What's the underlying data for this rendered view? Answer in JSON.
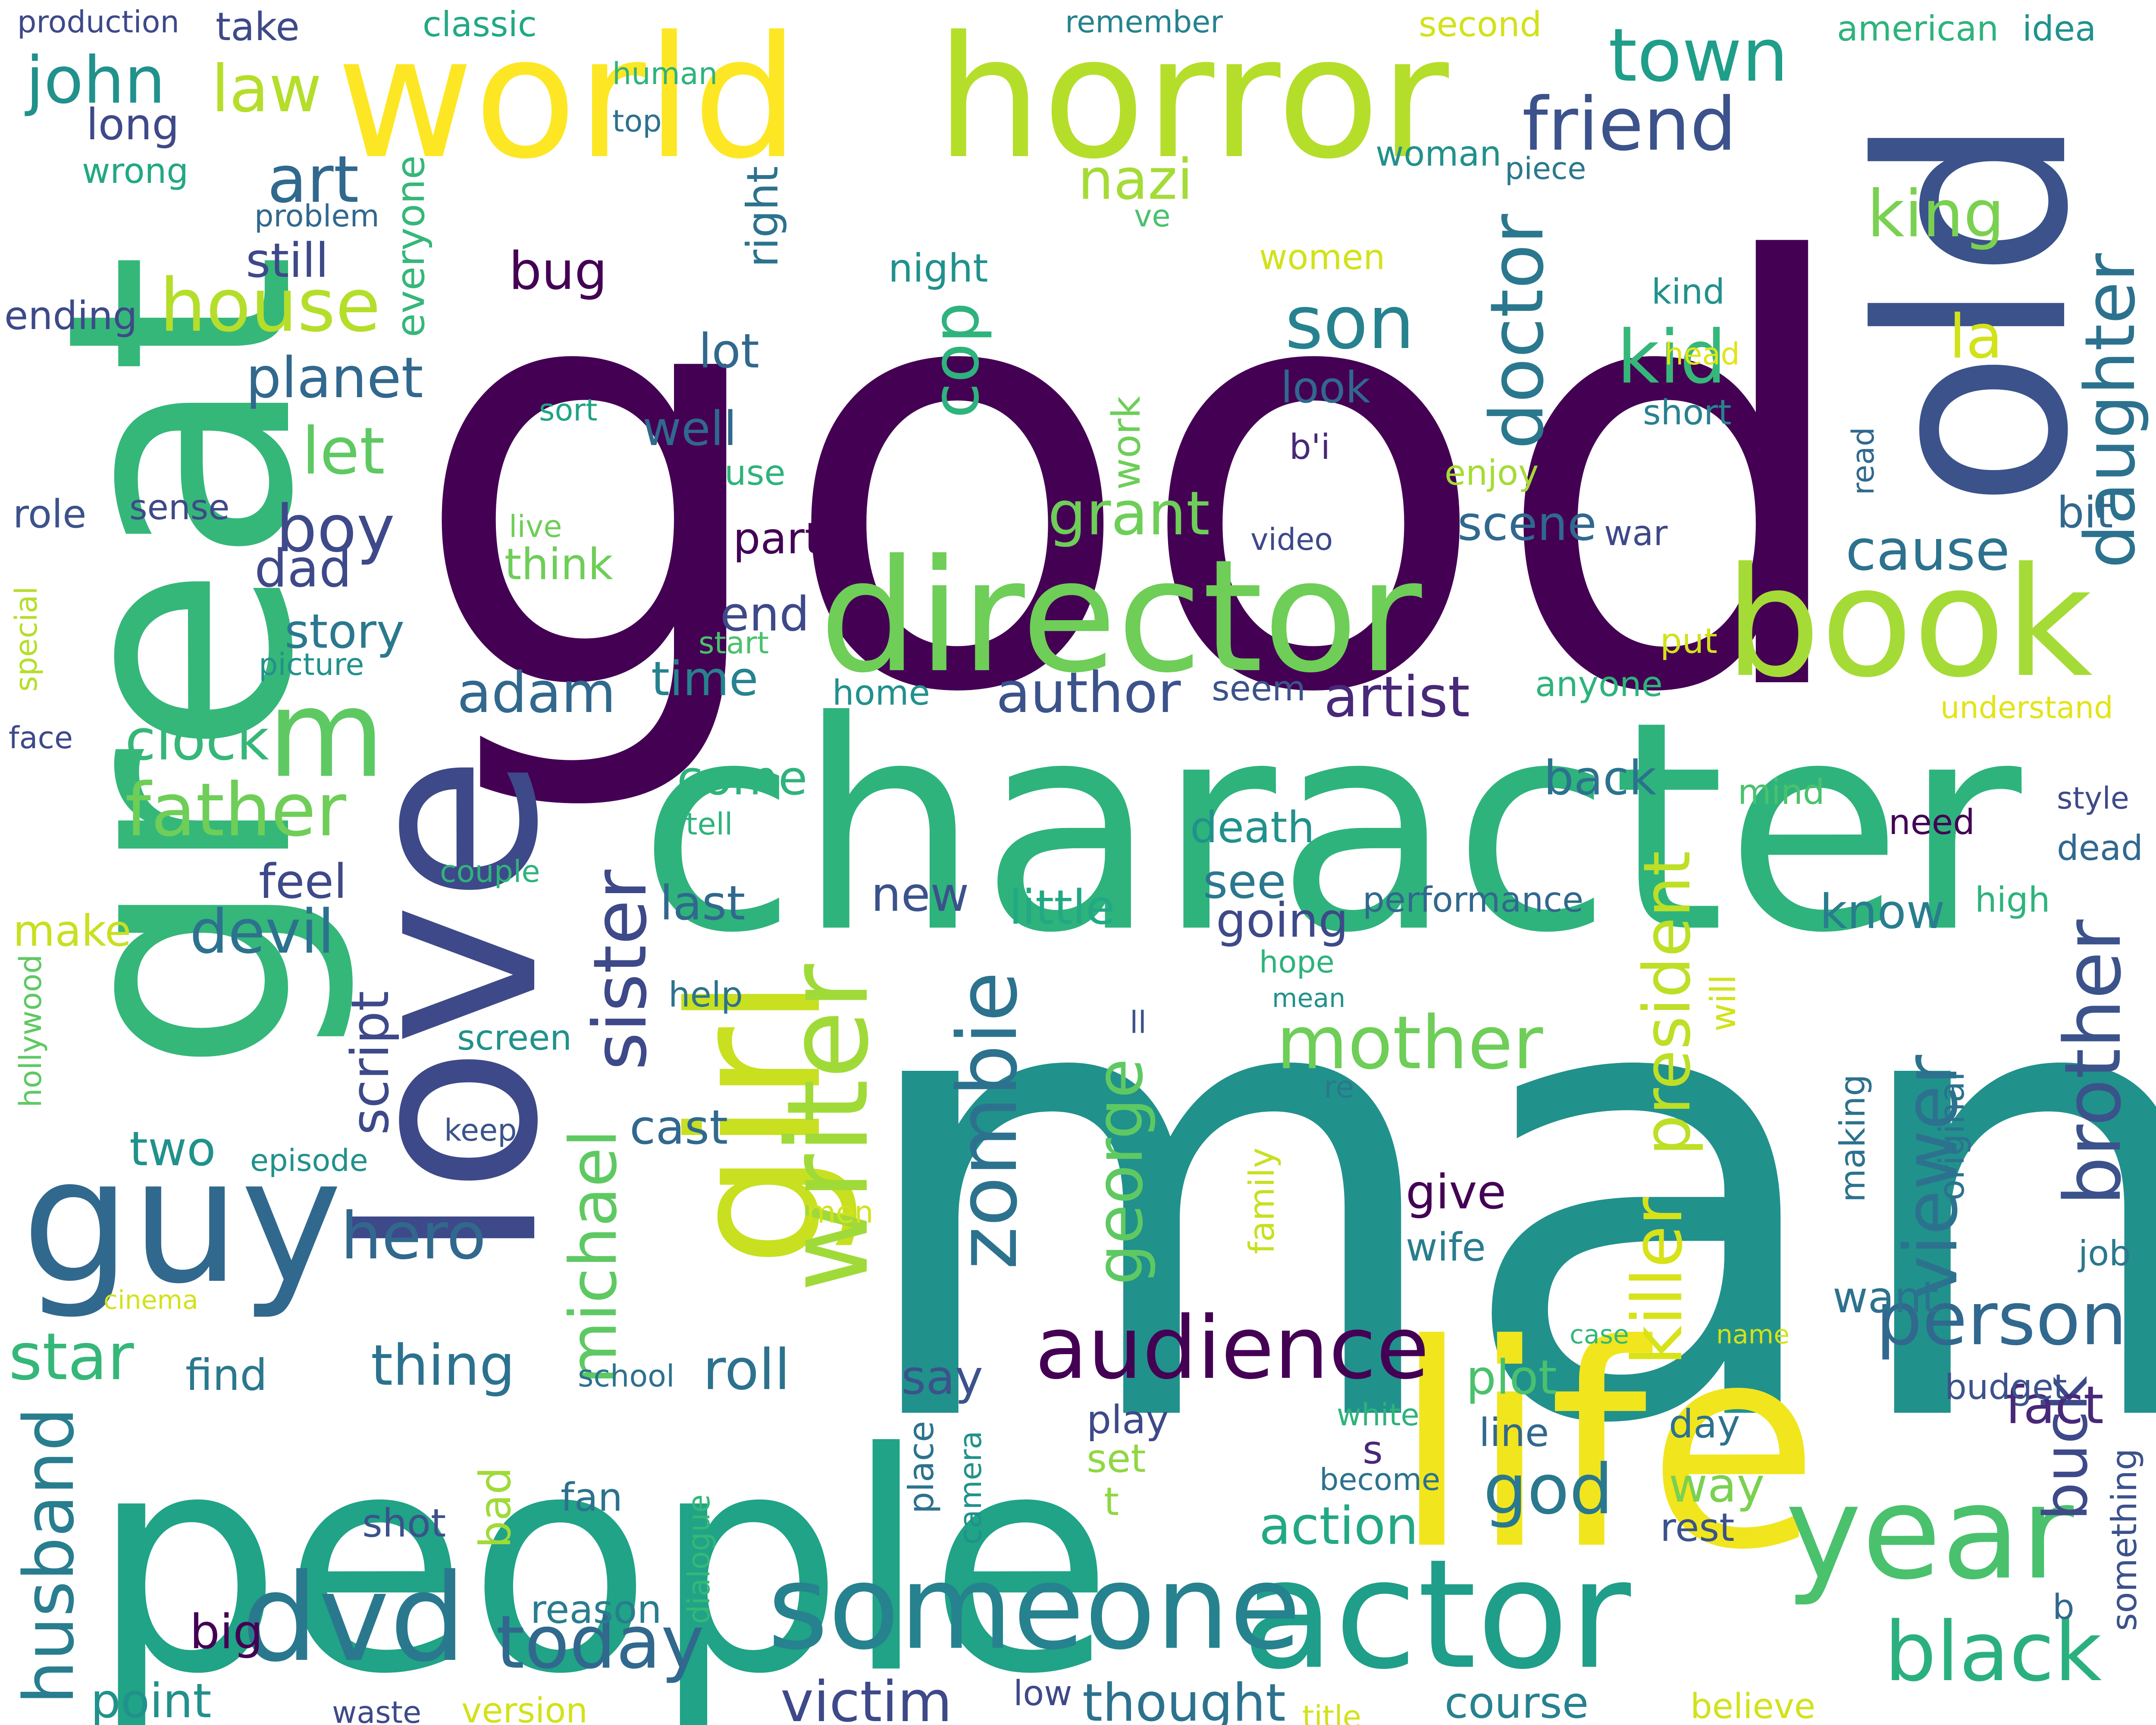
{
  "palette": {
    "background": "#ffffff",
    "colors": [
      "#440154",
      "#482878",
      "#3e4989",
      "#31688e",
      "#26828e",
      "#1f9e89",
      "#35b779",
      "#6ece58",
      "#b5de2b",
      "#fde725"
    ]
  },
  "words": [
    {
      "text": "good",
      "color": "#440154"
    },
    {
      "text": "man",
      "color": "#21918c"
    },
    {
      "text": "people",
      "color": "#20a386"
    },
    {
      "text": "great",
      "color": "#35b779"
    },
    {
      "text": "character",
      "color": "#2eb37c"
    },
    {
      "text": "love",
      "color": "#3e4989"
    },
    {
      "text": "old",
      "color": "#3b528b"
    },
    {
      "text": "life",
      "color": "#f1e51d"
    },
    {
      "text": "horror",
      "color": "#b5de2b"
    },
    {
      "text": "world",
      "color": "#fde725"
    },
    {
      "text": "director",
      "color": "#6ece58"
    },
    {
      "text": "book",
      "color": "#a5db36"
    },
    {
      "text": "girl",
      "color": "#c8e020"
    },
    {
      "text": "guy",
      "color": "#31688e"
    },
    {
      "text": "actor",
      "color": "#1f9e89"
    },
    {
      "text": "someone",
      "color": "#26828e"
    },
    {
      "text": "year",
      "color": "#4ac16d"
    },
    {
      "text": "dvd",
      "color": "#2a788e"
    },
    {
      "text": "m",
      "color": "#5ec962"
    },
    {
      "text": "audience",
      "color": "#440154"
    },
    {
      "text": "writer",
      "color": "#a0da39"
    },
    {
      "text": "zombie",
      "color": "#2c728e"
    },
    {
      "text": "person",
      "color": "#31688e"
    },
    {
      "text": "black",
      "color": "#2ab07f"
    },
    {
      "text": "today",
      "color": "#31688e"
    },
    {
      "text": "father",
      "color": "#6ece58"
    },
    {
      "text": "house",
      "color": "#b5de2b"
    },
    {
      "text": "friend",
      "color": "#3b528b"
    },
    {
      "text": "town",
      "color": "#1f9e89"
    },
    {
      "text": "son",
      "color": "#26828e"
    },
    {
      "text": "kid",
      "color": "#35b779"
    },
    {
      "text": "mother",
      "color": "#6ece58"
    },
    {
      "text": "george",
      "color": "#5ec962"
    },
    {
      "text": "killer",
      "color": "#d8e219"
    },
    {
      "text": "doctor",
      "color": "#2a788e"
    },
    {
      "text": "daughter",
      "color": "#2c728e"
    },
    {
      "text": "brother",
      "color": "#3b528b"
    },
    {
      "text": "husband",
      "color": "#287d8e"
    },
    {
      "text": "michael",
      "color": "#5ec962"
    },
    {
      "text": "sister",
      "color": "#3e4989"
    },
    {
      "text": "viewer",
      "color": "#2c728e"
    },
    {
      "text": "president",
      "color": "#bddf26"
    },
    {
      "text": "hero",
      "color": "#31688e"
    },
    {
      "text": "star",
      "color": "#35b779"
    },
    {
      "text": "victim",
      "color": "#3e4989"
    },
    {
      "text": "god",
      "color": "#2a788e"
    },
    {
      "text": "john",
      "color": "#21918c"
    },
    {
      "text": "law",
      "color": "#b5de2b"
    },
    {
      "text": "art",
      "color": "#31688e"
    },
    {
      "text": "king",
      "color": "#7ad151"
    },
    {
      "text": "nazi",
      "color": "#a5db36"
    },
    {
      "text": "cop",
      "color": "#2eb37c"
    },
    {
      "text": "grant",
      "color": "#6ece58"
    },
    {
      "text": "author",
      "color": "#3b528b"
    },
    {
      "text": "artist",
      "color": "#482878"
    },
    {
      "text": "adam",
      "color": "#31688e"
    },
    {
      "text": "clock",
      "color": "#35b779"
    },
    {
      "text": "let",
      "color": "#5ec962"
    },
    {
      "text": "boy",
      "color": "#3e4989"
    },
    {
      "text": "planet",
      "color": "#31688e"
    },
    {
      "text": "bug",
      "color": "#440154"
    },
    {
      "text": "la",
      "color": "#d2e21b"
    },
    {
      "text": "cause",
      "color": "#2c728e"
    },
    {
      "text": "scene",
      "color": "#31688e"
    },
    {
      "text": "devil",
      "color": "#2c728e"
    },
    {
      "text": "roll",
      "color": "#2c728e"
    },
    {
      "text": "thing",
      "color": "#2c728e"
    },
    {
      "text": "plot",
      "color": "#4ac16d"
    },
    {
      "text": "buck",
      "color": "#3e4989"
    },
    {
      "text": "fact",
      "color": "#482878"
    },
    {
      "text": "action",
      "color": "#22a884"
    },
    {
      "text": "way",
      "color": "#7ad151"
    },
    {
      "text": "big",
      "color": "#440154"
    },
    {
      "text": "point",
      "color": "#21918c"
    },
    {
      "text": "thought",
      "color": "#2c728e"
    },
    {
      "text": "course",
      "color": "#26828e"
    },
    {
      "text": "script",
      "color": "#3e4989"
    },
    {
      "text": "dad",
      "color": "#3e4989"
    },
    {
      "text": "story",
      "color": "#2a788e"
    },
    {
      "text": "end",
      "color": "#3e4989"
    },
    {
      "text": "time",
      "color": "#26828e"
    },
    {
      "text": "come",
      "color": "#2eb37c"
    },
    {
      "text": "last",
      "color": "#31688e"
    },
    {
      "text": "new",
      "color": "#3b528b"
    },
    {
      "text": "little",
      "color": "#22a884"
    },
    {
      "text": "see",
      "color": "#2a788e"
    },
    {
      "text": "going",
      "color": "#3e4989"
    },
    {
      "text": "know",
      "color": "#287d8e"
    },
    {
      "text": "back",
      "color": "#2c728e"
    },
    {
      "text": "death",
      "color": "#21918c"
    },
    {
      "text": "give",
      "color": "#440154"
    },
    {
      "text": "wife",
      "color": "#287d8e"
    },
    {
      "text": "want",
      "color": "#2c728e"
    },
    {
      "text": "cast",
      "color": "#31688e"
    },
    {
      "text": "two",
      "color": "#21918c"
    },
    {
      "text": "feel",
      "color": "#3e4989"
    },
    {
      "text": "find",
      "color": "#2a788e"
    },
    {
      "text": "make",
      "color": "#c8e020"
    },
    {
      "text": "say",
      "color": "#3b528b"
    },
    {
      "text": "play",
      "color": "#3e4989"
    },
    {
      "text": "set",
      "color": "#90d743"
    },
    {
      "text": "t",
      "color": "#90d743"
    },
    {
      "text": "s",
      "color": "#482878"
    },
    {
      "text": "day",
      "color": "#2c728e"
    },
    {
      "text": "line",
      "color": "#31688e"
    },
    {
      "text": "rest",
      "color": "#3b528b"
    },
    {
      "text": "fan",
      "color": "#2c728e"
    },
    {
      "text": "shot",
      "color": "#3b528b"
    },
    {
      "text": "bad",
      "color": "#a0da39"
    },
    {
      "text": "reason",
      "color": "#287d8e"
    },
    {
      "text": "part",
      "color": "#440154"
    },
    {
      "text": "think",
      "color": "#6ece58"
    },
    {
      "text": "well",
      "color": "#31688e"
    },
    {
      "text": "lot",
      "color": "#31688e"
    },
    {
      "text": "right",
      "color": "#2c728e"
    },
    {
      "text": "work",
      "color": "#6ece58"
    },
    {
      "text": "look",
      "color": "#31688e"
    },
    {
      "text": "role",
      "color": "#3b528b"
    },
    {
      "text": "sense",
      "color": "#3e4989"
    },
    {
      "text": "still",
      "color": "#3e4989"
    },
    {
      "text": "long",
      "color": "#3e4989"
    },
    {
      "text": "take",
      "color": "#3e4989"
    },
    {
      "text": "ending",
      "color": "#3e4989"
    },
    {
      "text": "wrong",
      "color": "#22a884"
    },
    {
      "text": "problem",
      "color": "#31688e"
    },
    {
      "text": "everyone",
      "color": "#35b779"
    },
    {
      "text": "production",
      "color": "#3e4989"
    },
    {
      "text": "classic",
      "color": "#22a884"
    },
    {
      "text": "remember",
      "color": "#26828e"
    },
    {
      "text": "second",
      "color": "#d2e21b"
    },
    {
      "text": "american",
      "color": "#2eb37c"
    },
    {
      "text": "idea",
      "color": "#21918c"
    },
    {
      "text": "human",
      "color": "#2eb37c"
    },
    {
      "text": "top",
      "color": "#2c728e"
    },
    {
      "text": "woman",
      "color": "#21918c"
    },
    {
      "text": "piece",
      "color": "#2a788e"
    },
    {
      "text": "ve",
      "color": "#4ac16d"
    },
    {
      "text": "night",
      "color": "#21918c"
    },
    {
      "text": "women",
      "color": "#d2e21b"
    },
    {
      "text": "kind",
      "color": "#21918c"
    },
    {
      "text": "head",
      "color": "#e2e418"
    },
    {
      "text": "sort",
      "color": "#20a386"
    },
    {
      "text": "short",
      "color": "#26828e"
    },
    {
      "text": "b'i",
      "color": "#482878"
    },
    {
      "text": "use",
      "color": "#2eb37c"
    },
    {
      "text": "enjoy",
      "color": "#a5db36"
    },
    {
      "text": "read",
      "color": "#31688e"
    },
    {
      "text": "bit",
      "color": "#31688e"
    },
    {
      "text": "live",
      "color": "#6ece58"
    },
    {
      "text": "video",
      "color": "#3e4989"
    },
    {
      "text": "war",
      "color": "#3e4989"
    },
    {
      "text": "start",
      "color": "#4ac16d"
    },
    {
      "text": "put",
      "color": "#d2e21b"
    },
    {
      "text": "picture",
      "color": "#21918c"
    },
    {
      "text": "special",
      "color": "#b5de2b"
    },
    {
      "text": "face",
      "color": "#3e4989"
    },
    {
      "text": "home",
      "color": "#21918c"
    },
    {
      "text": "seem",
      "color": "#3b528b"
    },
    {
      "text": "anyone",
      "color": "#2eb37c"
    },
    {
      "text": "understand",
      "color": "#e2e418"
    },
    {
      "text": "tell",
      "color": "#2eb37c"
    },
    {
      "text": "mind",
      "color": "#4ac16d"
    },
    {
      "text": "need",
      "color": "#440154"
    },
    {
      "text": "style",
      "color": "#3e4989"
    },
    {
      "text": "dead",
      "color": "#31688e"
    },
    {
      "text": "couple",
      "color": "#2eb37c"
    },
    {
      "text": "performance",
      "color": "#31688e"
    },
    {
      "text": "high",
      "color": "#2eb37c"
    },
    {
      "text": "hollywood",
      "color": "#5ec962"
    },
    {
      "text": "hope",
      "color": "#2eb37c"
    },
    {
      "text": "mean",
      "color": "#21918c"
    },
    {
      "text": "help",
      "color": "#2c728e"
    },
    {
      "text": "will",
      "color": "#d2e21b"
    },
    {
      "text": "ll",
      "color": "#3b528b"
    },
    {
      "text": "screen",
      "color": "#21918c"
    },
    {
      "text": "re",
      "color": "#2a788e"
    },
    {
      "text": "keep",
      "color": "#3b528b"
    },
    {
      "text": "episode",
      "color": "#21918c"
    },
    {
      "text": "original",
      "color": "#2c728e"
    },
    {
      "text": "making",
      "color": "#2c728e"
    },
    {
      "text": "family",
      "color": "#c8e020"
    },
    {
      "text": "men",
      "color": "#d2e21b"
    },
    {
      "text": "job",
      "color": "#2a788e"
    },
    {
      "text": "cinema",
      "color": "#d2e21b"
    },
    {
      "text": "case",
      "color": "#35b779"
    },
    {
      "text": "name",
      "color": "#d2e21b"
    },
    {
      "text": "school",
      "color": "#2c728e"
    },
    {
      "text": "budget",
      "color": "#3b528b"
    },
    {
      "text": "white",
      "color": "#2eb37c"
    },
    {
      "text": "become",
      "color": "#2c728e"
    },
    {
      "text": "place",
      "color": "#2c728e"
    },
    {
      "text": "camera",
      "color": "#21918c"
    },
    {
      "text": "dialogue",
      "color": "#35b779"
    },
    {
      "text": "something",
      "color": "#3b528b"
    },
    {
      "text": "b",
      "color": "#31688e"
    },
    {
      "text": "low",
      "color": "#3e4989"
    },
    {
      "text": "waste",
      "color": "#3e4989"
    },
    {
      "text": "version",
      "color": "#d2e21b"
    },
    {
      "text": "title",
      "color": "#d2e21b"
    },
    {
      "text": "believe",
      "color": "#d2e21b"
    }
  ]
}
